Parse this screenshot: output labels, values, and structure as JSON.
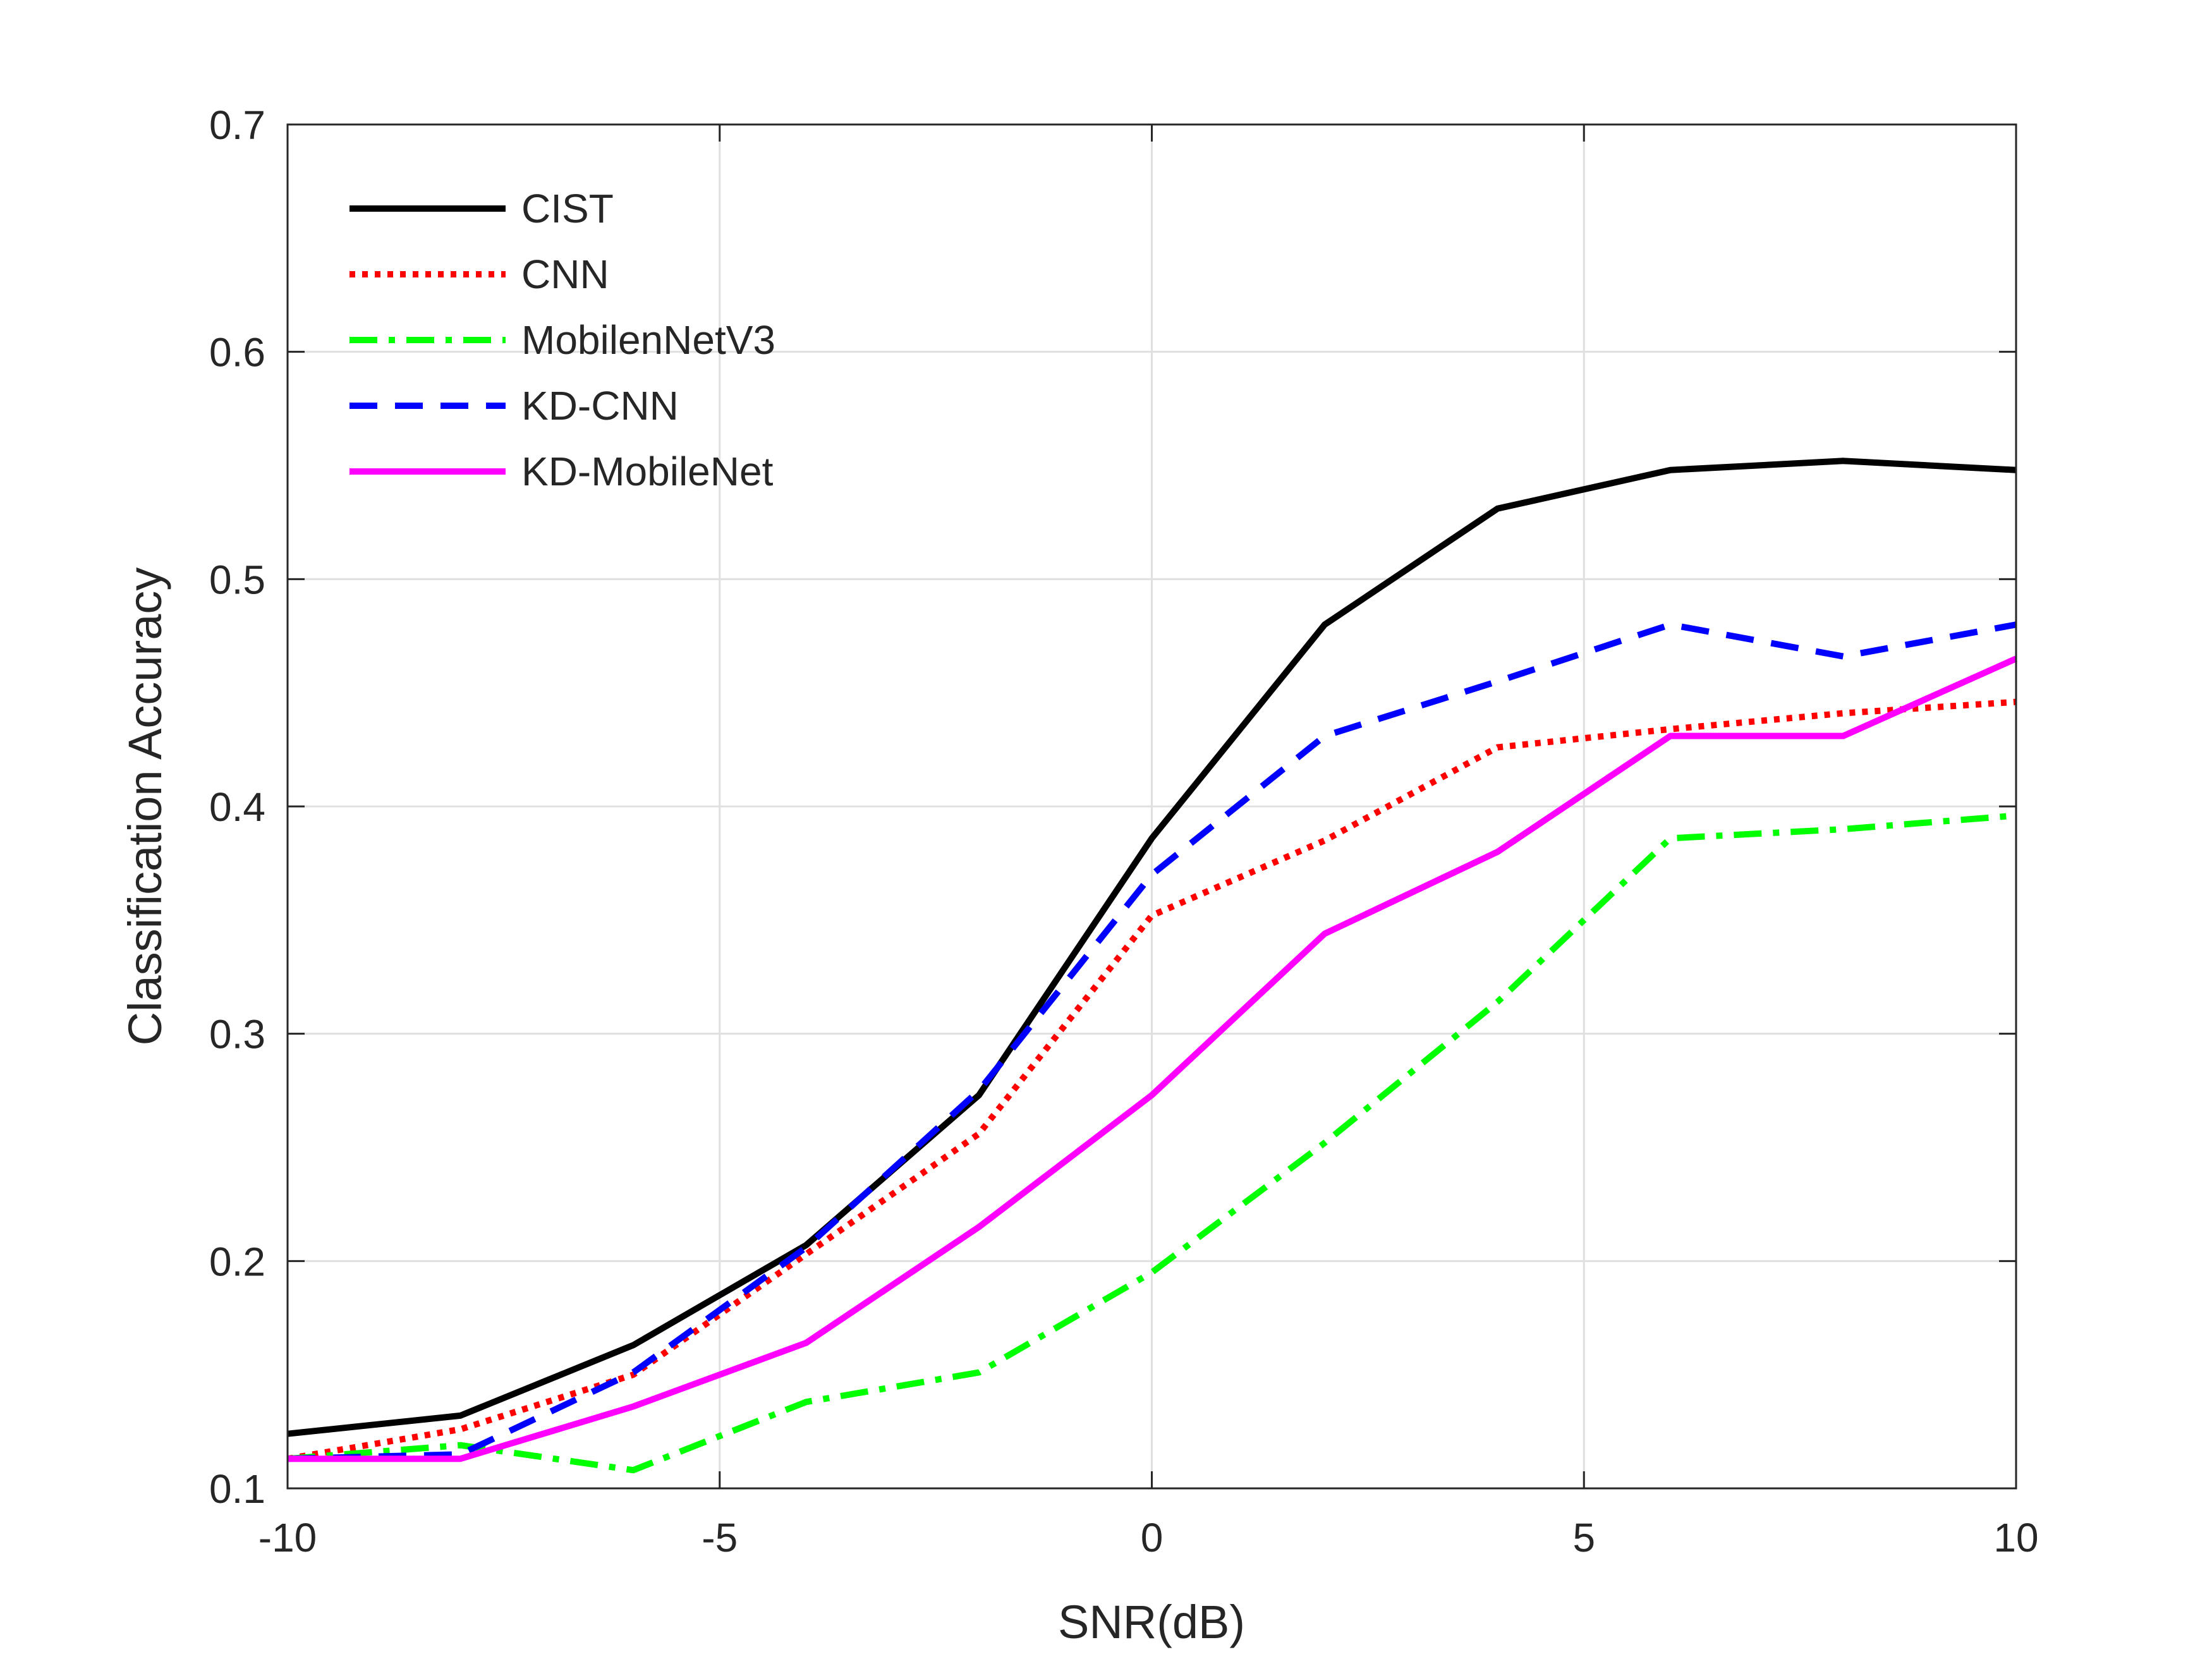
{
  "chart_data": {
    "type": "line",
    "title": "",
    "xlabel": "SNR(dB)",
    "ylabel": "Classification Accuracy",
    "xlim": [
      -10,
      10
    ],
    "ylim": [
      0.1,
      0.7
    ],
    "xticks": [
      -10,
      -5,
      0,
      5,
      10
    ],
    "yticks": [
      0.1,
      0.2,
      0.3,
      0.4,
      0.5,
      0.6,
      0.7
    ],
    "xtick_labels": [
      "-10",
      "-5",
      "0",
      "5",
      "10"
    ],
    "ytick_labels": [
      "0.1",
      "0.2",
      "0.3",
      "0.4",
      "0.5",
      "0.6",
      "0.7"
    ],
    "grid": true,
    "legend_position": "top-left",
    "x": [
      -10,
      -8,
      -6,
      -4,
      -2,
      0,
      2,
      4,
      6,
      8,
      10
    ],
    "series": [
      {
        "name": "CIST",
        "color": "#000000",
        "style": "solid",
        "values": [
          0.124,
          0.132,
          0.163,
          0.207,
          0.273,
          0.386,
          0.48,
          0.531,
          0.548,
          0.552,
          0.548
        ]
      },
      {
        "name": "CNN",
        "color": "#ff0000",
        "style": "dotted",
        "values": [
          0.113,
          0.126,
          0.15,
          0.203,
          0.256,
          0.352,
          0.385,
          0.426,
          0.434,
          0.441,
          0.446
        ]
      },
      {
        "name": "MobilenNetV3",
        "color": "#00ff00",
        "style": "dashdot",
        "values": [
          0.113,
          0.119,
          0.108,
          0.138,
          0.151,
          0.195,
          0.252,
          0.314,
          0.386,
          0.39,
          0.396
        ]
      },
      {
        "name": "KD-CNN",
        "color": "#0000ff",
        "style": "dashed",
        "values": [
          0.113,
          0.115,
          0.151,
          0.206,
          0.275,
          0.37,
          0.431,
          0.455,
          0.48,
          0.466,
          0.48
        ]
      },
      {
        "name": "KD-MobileNet",
        "color": "#ff00ff",
        "style": "solid",
        "values": [
          0.113,
          0.113,
          0.136,
          0.164,
          0.215,
          0.273,
          0.344,
          0.38,
          0.431,
          0.431,
          0.465
        ]
      }
    ]
  }
}
